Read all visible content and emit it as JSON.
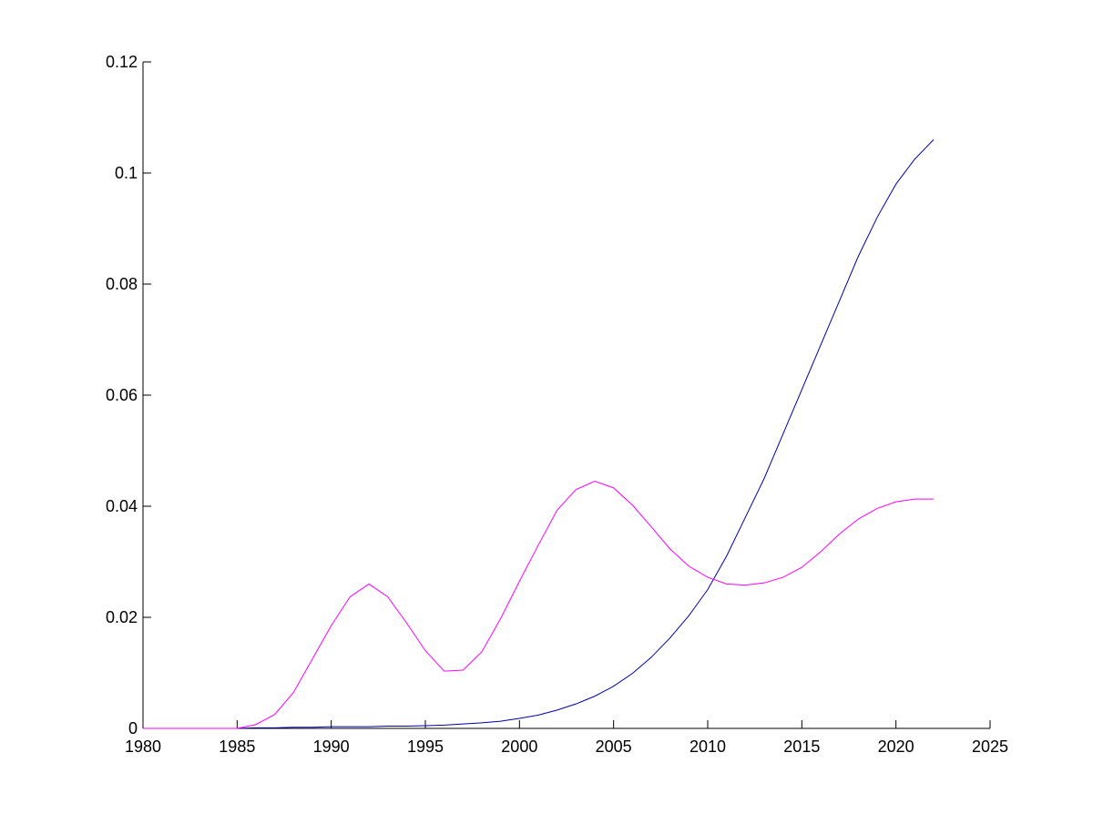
{
  "chart_data": {
    "type": "line",
    "title": "",
    "xlabel": "",
    "ylabel": "",
    "xlim": [
      1980,
      2025
    ],
    "ylim": [
      0,
      0.12
    ],
    "x_ticks": [
      1980,
      1985,
      1990,
      1995,
      2000,
      2005,
      2010,
      2015,
      2020,
      2025
    ],
    "x_tick_labels": [
      "1980",
      "1985",
      "1990",
      "1995",
      "2000",
      "2005",
      "2010",
      "2015",
      "2020",
      "2025"
    ],
    "y_ticks": [
      0,
      0.02,
      0.04,
      0.06,
      0.08,
      0.1,
      0.12
    ],
    "y_tick_labels": [
      "0",
      "0.02",
      "0.04",
      "0.06",
      "0.08",
      "0.1",
      "0.12"
    ],
    "grid": false,
    "legend": false,
    "x": [
      1980,
      1981,
      1982,
      1983,
      1984,
      1985,
      1986,
      1987,
      1988,
      1989,
      1990,
      1991,
      1992,
      1993,
      1994,
      1995,
      1996,
      1997,
      1998,
      1999,
      2000,
      2001,
      2002,
      2003,
      2004,
      2005,
      2006,
      2007,
      2008,
      2009,
      2010,
      2011,
      2012,
      2013,
      2014,
      2015,
      2016,
      2017,
      2018,
      2019,
      2020,
      2021,
      2022
    ],
    "series": [
      {
        "color": "#0000aa",
        "values": [
          0,
          0,
          0,
          0,
          0,
          0,
          0.0001,
          0.0001,
          0.0002,
          0.0002,
          0.0003,
          0.0003,
          0.0003,
          0.0004,
          0.0004,
          0.0005,
          0.0006,
          0.0008,
          0.001,
          0.0013,
          0.0018,
          0.0024,
          0.0033,
          0.0044,
          0.0058,
          0.0076,
          0.0099,
          0.0128,
          0.0163,
          0.0203,
          0.025,
          0.031,
          0.038,
          0.045,
          0.053,
          0.061,
          0.069,
          0.077,
          0.085,
          0.092,
          0.098,
          0.1025,
          0.106
        ]
      },
      {
        "color": "#ff00ff",
        "values": [
          0,
          0,
          0,
          0,
          0,
          0,
          0.0007,
          0.0025,
          0.0065,
          0.0125,
          0.0185,
          0.0237,
          0.026,
          0.0237,
          0.019,
          0.014,
          0.0103,
          0.0105,
          0.0138,
          0.0198,
          0.0265,
          0.033,
          0.0393,
          0.043,
          0.0445,
          0.0433,
          0.0402,
          0.0363,
          0.0323,
          0.0292,
          0.0272,
          0.026,
          0.0258,
          0.0262,
          0.0272,
          0.029,
          0.0318,
          0.035,
          0.0377,
          0.0396,
          0.0408,
          0.0413,
          0.0413
        ]
      }
    ]
  }
}
